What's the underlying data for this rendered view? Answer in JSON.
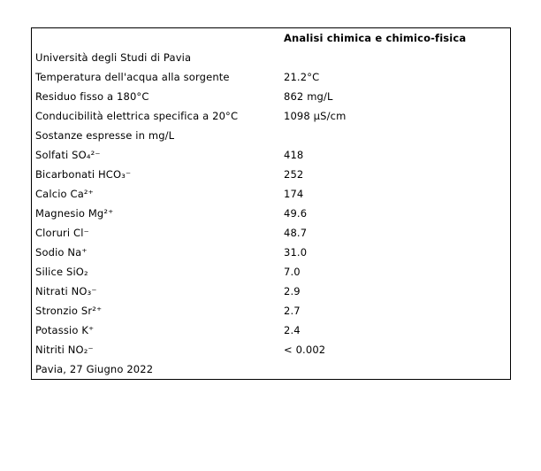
{
  "figure": {
    "header": "Analisi chimica e chimico-fisica",
    "rows": [
      {
        "label": "Università degli Studi di Pavia",
        "value": ""
      },
      {
        "label": "Temperatura dell'acqua alla sorgente",
        "value": "21.2°C"
      },
      {
        "label": "Residuo fisso a 180°C",
        "value": "862 mg/L"
      },
      {
        "label": "Conducibilità elettrica specifica a 20°C",
        "value": "1098 µS/cm"
      },
      {
        "label": "Sostanze espresse in mg/L",
        "value": ""
      },
      {
        "label": "Solfati SO₄²⁻",
        "value": "418"
      },
      {
        "label": "Bicarbonati HCO₃⁻",
        "value": "252"
      },
      {
        "label": "Calcio Ca²⁺",
        "value": "174"
      },
      {
        "label": "Magnesio Mg²⁺",
        "value": "49.6"
      },
      {
        "label": "Cloruri Cl⁻",
        "value": "48.7"
      },
      {
        "label": "Sodio Na⁺",
        "value": "31.0"
      },
      {
        "label": "Silice SiO₂",
        "value": "7.0"
      },
      {
        "label": "Nitrati NO₃⁻",
        "value": "2.9"
      },
      {
        "label": "Stronzio Sr²⁺",
        "value": "2.7"
      },
      {
        "label": "Potassio K⁺",
        "value": "2.4"
      },
      {
        "label": "Nitriti NO₂⁻",
        "value": "< 0.002"
      },
      {
        "label": "Pavia, 27 Giugno 2022",
        "value": ""
      }
    ]
  },
  "chart_data": {
    "type": "table",
    "title": "Analisi chimica e chimico-fisica",
    "source_label": "Università degli Studi di Pavia",
    "footer": "Pavia, 27 Giugno 2022",
    "rows": [
      [
        "Università degli Studi di Pavia",
        ""
      ],
      [
        "Temperatura dell'acqua alla sorgente",
        "21.2°C"
      ],
      [
        "Residuo fisso a 180°C",
        "862 mg/L"
      ],
      [
        "Conducibilità elettrica specifica a 20°C",
        "1098 µS/cm"
      ],
      [
        "Sostanze espresse in mg/L",
        ""
      ],
      [
        "Solfati SO₄²⁻",
        "418"
      ],
      [
        "Bicarbonati HCO₃⁻",
        "252"
      ],
      [
        "Calcio Ca²⁺",
        "174"
      ],
      [
        "Magnesio Mg²⁺",
        "49.6"
      ],
      [
        "Cloruri Cl⁻",
        "48.7"
      ],
      [
        "Sodio Na⁺",
        "31.0"
      ],
      [
        "Silice SiO₂",
        "7.0"
      ],
      [
        "Nitrati NO₃⁻",
        "2.9"
      ],
      [
        "Stronzio Sr²⁺",
        "2.7"
      ],
      [
        "Potassio K⁺",
        "2.4"
      ],
      [
        "Nitriti NO₂⁻",
        "< 0.002"
      ],
      [
        "Pavia, 27 Giugno 2022",
        ""
      ]
    ],
    "parsed_values": {
      "temperatura_sorgente_C": 21.2,
      "residuo_fisso_180C_mg_L": 862,
      "conducibilita_20C_uS_cm": 1098,
      "solfati_SO4_mg_L": 418,
      "bicarbonati_HCO3_mg_L": 252,
      "calcio_Ca_mg_L": 174,
      "magnesio_Mg_mg_L": 49.6,
      "cloruri_Cl_mg_L": 48.7,
      "sodio_Na_mg_L": 31.0,
      "silice_SiO2_mg_L": 7.0,
      "nitrati_NO3_mg_L": 2.9,
      "stronzio_Sr_mg_L": 2.7,
      "potassio_K_mg_L": 2.4,
      "nitriti_NO2_mg_L": "< 0.002"
    },
    "layout": {
      "gridlines": false,
      "outer_border": true,
      "header_bold": true,
      "header_column": 2,
      "colors": {
        "background": "#ffffff",
        "text": "#000000",
        "border": "#000000"
      }
    }
  }
}
